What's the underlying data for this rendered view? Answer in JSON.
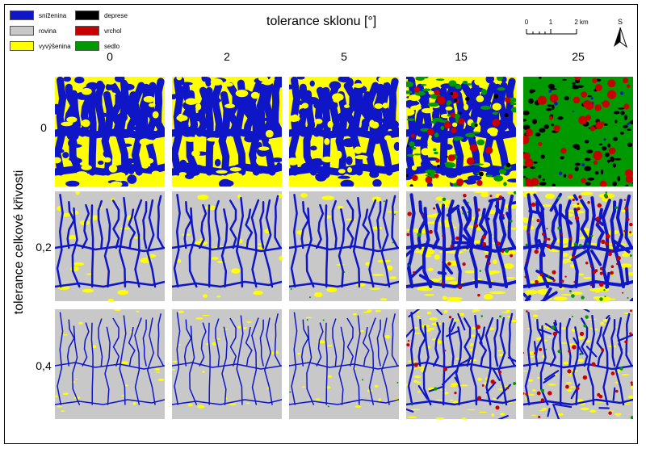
{
  "title": "tolerance sklonu [°]",
  "y_title": "tolerance celkové křivosti",
  "legend": [
    {
      "label": "sníženina",
      "color": "#0f16c8"
    },
    {
      "label": "rovina",
      "color": "#c8c8c8"
    },
    {
      "label": "vyvýšenina",
      "color": "#ffff00"
    },
    {
      "label": "deprese",
      "color": "#000000"
    },
    {
      "label": "vrchol",
      "color": "#c80000"
    },
    {
      "label": "sedlo",
      "color": "#009900"
    }
  ],
  "columns": [
    "0",
    "2",
    "5",
    "15",
    "25"
  ],
  "rows": [
    "0",
    "0,2",
    "0,4"
  ],
  "scale": {
    "ticks": [
      "0",
      "1",
      "2 km"
    ]
  },
  "north_label": "S",
  "colors": {
    "blue": "#0f16c8",
    "gray": "#c8c8c8",
    "yellow": "#ffff00",
    "black": "#000000",
    "red": "#c80000",
    "green": "#009900"
  }
}
